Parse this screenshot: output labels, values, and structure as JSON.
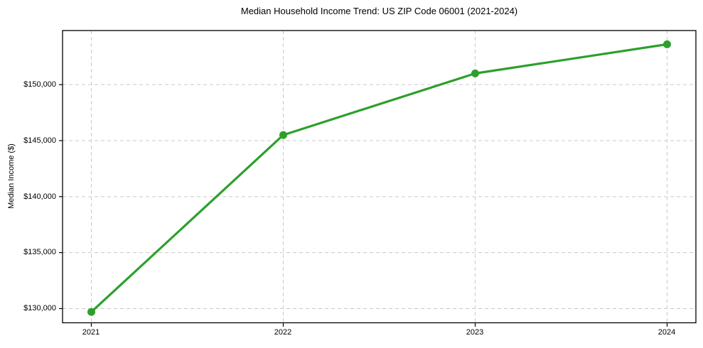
{
  "chart_data": {
    "type": "line",
    "title": "Median Household Income Trend: US ZIP Code 06001 (2021-2024)",
    "xlabel": "",
    "ylabel": "Median Income ($)",
    "x": [
      2021,
      2022,
      2023,
      2024
    ],
    "series": [
      {
        "values": [
          129700,
          145500,
          151000,
          153600
        ]
      }
    ],
    "xticks": {
      "values": [
        2021,
        2022,
        2023,
        2024
      ],
      "labels": [
        "2021",
        "2022",
        "2023",
        "2024"
      ]
    },
    "yticks": {
      "values": [
        130000,
        135000,
        140000,
        145000,
        150000
      ],
      "labels": [
        "$130,000",
        "$135,000",
        "$140,000",
        "$145,000",
        "$150,000"
      ]
    },
    "xlim": [
      2020.85,
      2024.15
    ],
    "ylim": [
      128730,
      154830
    ],
    "grid": true,
    "grid_style": "dashed",
    "legend": "none",
    "marker": "o",
    "colors": {
      "line": "#2ca02c",
      "marker": "#2ca02c",
      "grid": "#c9c9c9",
      "axis": "#000000",
      "text": "#000000",
      "background": "#ffffff"
    }
  }
}
